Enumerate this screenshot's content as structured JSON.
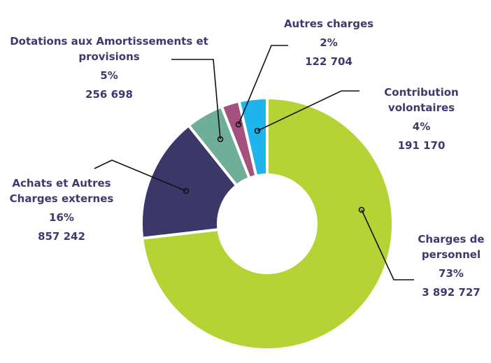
{
  "chart_data": {
    "type": "donut",
    "categories": [
      "Charges de personnel",
      "Achats et Autres Charges externes",
      "Dotations aux Amortissements et provisions",
      "Autres charges",
      "Contribution volontaires"
    ],
    "values": [
      3892727,
      857242,
      256698,
      122704,
      191170
    ],
    "value_labels": [
      "3 892 727",
      "857 242",
      "256 698",
      "122 704",
      "191 170"
    ],
    "percentages": [
      73,
      16,
      5,
      2,
      4
    ],
    "percentage_labels": [
      "73%",
      "16%",
      "5%",
      "2%",
      "4%"
    ],
    "colors": [
      "#b5d334",
      "#3b3869",
      "#6fae99",
      "#a4517f",
      "#1eb4ec"
    ]
  }
}
